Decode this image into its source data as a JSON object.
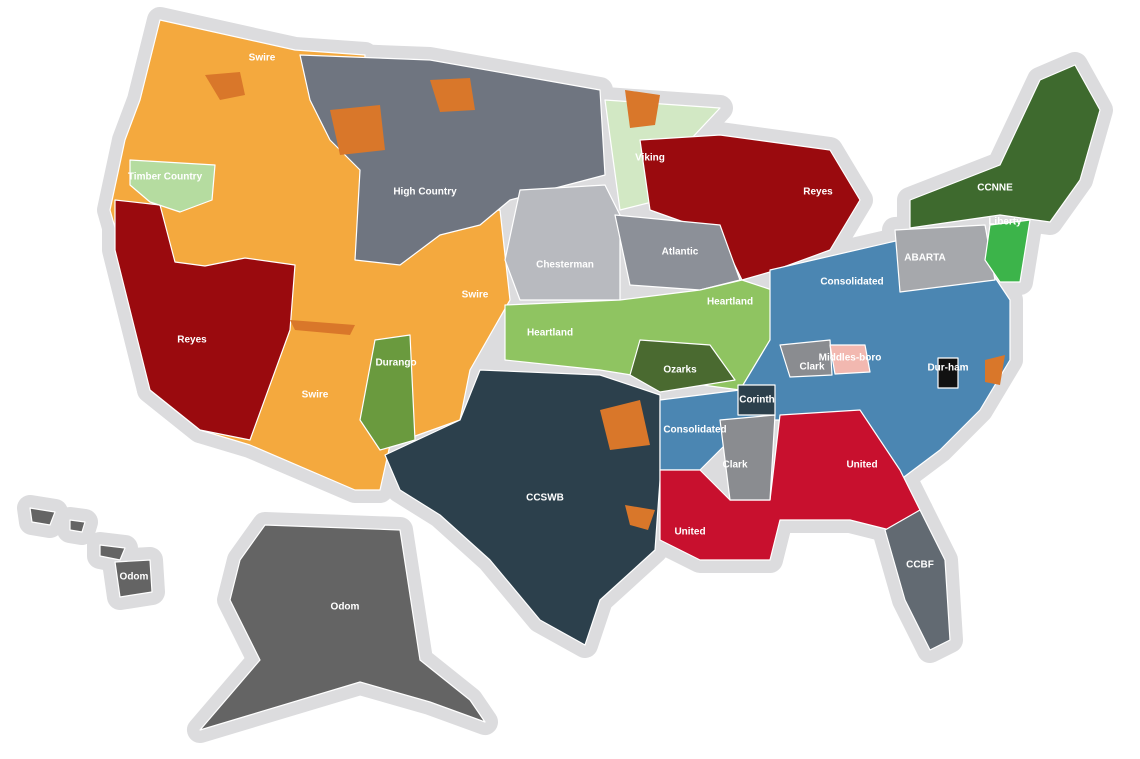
{
  "map": {
    "regions": [
      {
        "color": "#f4a93e",
        "labels": [
          "Swire",
          "Swire",
          "Swire"
        ]
      },
      {
        "color": "#9a0a0e",
        "labels": [
          "Reyes"
        ]
      },
      {
        "color": "#b5dca0",
        "labels": [
          "Timber Country"
        ]
      },
      {
        "color": "#6f7580",
        "labels": [
          "High Country"
        ]
      },
      {
        "color": "#b8babf",
        "labels": [
          "Chesterman"
        ]
      },
      {
        "color": "#d2e8c4",
        "labels": [
          "Viking"
        ]
      },
      {
        "color": "#9a0a0e",
        "labels": [
          "Reyes"
        ]
      },
      {
        "color": "#8c9098",
        "labels": [
          "Atlantic"
        ]
      },
      {
        "color": "#8fc461",
        "labels": [
          "Heartland",
          "Heartland"
        ]
      },
      {
        "color": "#4a6a30",
        "labels": [
          "Ozarks"
        ]
      },
      {
        "color": "#6a9a3e",
        "labels": [
          "Durango"
        ]
      },
      {
        "color": "#2c404c",
        "labels": [
          "CCSWB"
        ]
      },
      {
        "color": "#4b86b2",
        "labels": [
          "Consolidated",
          "Consolidated"
        ]
      },
      {
        "color": "#c8102e",
        "labels": [
          "United",
          "United"
        ]
      },
      {
        "color": "#8a8c90",
        "labels": [
          "Clark",
          "Clark"
        ]
      },
      {
        "color": "#f2b8b0",
        "labels": [
          "Middles-boro"
        ]
      },
      {
        "color": "#111111",
        "labels": [
          "Dur-ham"
        ]
      },
      {
        "color": "#2c404c",
        "labels": [
          "Corinth"
        ]
      },
      {
        "color": "#626a72",
        "labels": [
          "CCBF"
        ]
      },
      {
        "color": "#3e6a2e",
        "labels": [
          "CCNNE"
        ]
      },
      {
        "color": "#a6a8ac",
        "labels": [
          "ABARTA"
        ]
      },
      {
        "color": "#3cb44a",
        "labels": [
          "Liberty"
        ]
      },
      {
        "color": "#646464",
        "labels": [
          "Odom",
          "Odom"
        ]
      }
    ]
  }
}
